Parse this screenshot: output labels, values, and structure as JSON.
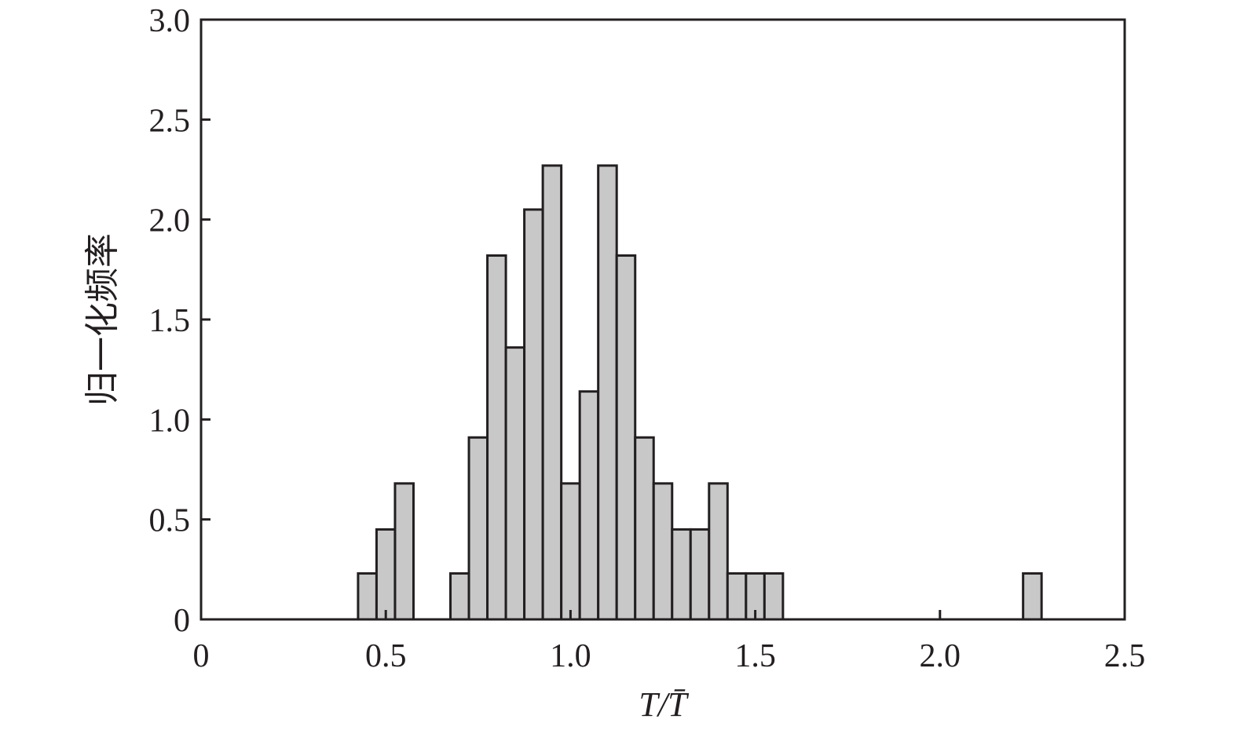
{
  "chart_data": {
    "type": "bar",
    "title": "",
    "xlabel": "T/T̄",
    "ylabel": "归一化频率",
    "xlim": [
      0,
      2.5
    ],
    "ylim": [
      0,
      3.0
    ],
    "bin_width": 0.05,
    "grid": false,
    "bar_color": "#c8c8c8",
    "edge_color": "#231f20",
    "x_ticks": [
      0,
      0.5,
      1.0,
      1.5,
      2.0,
      2.5
    ],
    "x_tick_labels": [
      "0",
      "0.5",
      "1.0",
      "1.5",
      "2.0",
      "2.5"
    ],
    "y_ticks": [
      0,
      0.5,
      1.0,
      1.5,
      2.0,
      2.5,
      3.0
    ],
    "y_tick_labels": [
      "0",
      "0.5",
      "1.0",
      "1.5",
      "2.0",
      "2.5",
      "3.0"
    ],
    "bins": [
      {
        "x0": 0.425,
        "value": 0.23
      },
      {
        "x0": 0.475,
        "value": 0.45
      },
      {
        "x0": 0.525,
        "value": 0.68
      },
      {
        "x0": 0.675,
        "value": 0.23
      },
      {
        "x0": 0.725,
        "value": 0.91
      },
      {
        "x0": 0.775,
        "value": 1.82
      },
      {
        "x0": 0.825,
        "value": 1.36
      },
      {
        "x0": 0.875,
        "value": 2.05
      },
      {
        "x0": 0.925,
        "value": 2.27
      },
      {
        "x0": 0.975,
        "value": 0.68
      },
      {
        "x0": 1.025,
        "value": 1.14
      },
      {
        "x0": 1.075,
        "value": 2.27
      },
      {
        "x0": 1.125,
        "value": 1.82
      },
      {
        "x0": 1.175,
        "value": 0.91
      },
      {
        "x0": 1.225,
        "value": 0.68
      },
      {
        "x0": 1.275,
        "value": 0.45
      },
      {
        "x0": 1.325,
        "value": 0.45
      },
      {
        "x0": 1.375,
        "value": 0.68
      },
      {
        "x0": 1.425,
        "value": 0.23
      },
      {
        "x0": 1.475,
        "value": 0.23
      },
      {
        "x0": 1.525,
        "value": 0.23
      },
      {
        "x0": 2.225,
        "value": 0.23
      }
    ]
  }
}
